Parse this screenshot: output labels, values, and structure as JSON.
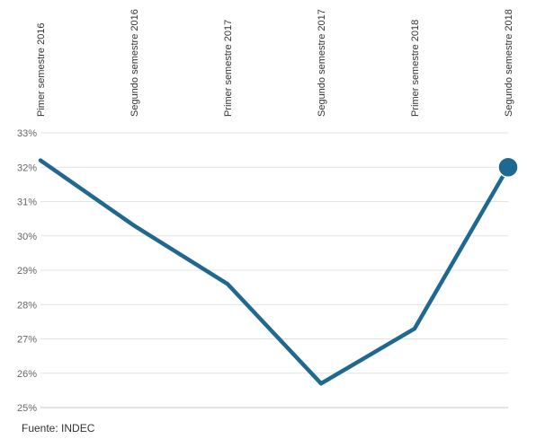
{
  "source": "Fuente: INDEC",
  "chart_data": {
    "type": "line",
    "title": "",
    "xlabel": "",
    "ylabel": "",
    "x": [
      "Pimer semestre 2016",
      "Segundo semestre 2016",
      "Primer semestre 2017",
      "Segundo semestre 2017",
      "Primer semestre 2018",
      "Segundo semestre 2018"
    ],
    "y_tick_labels": [
      "33%",
      "32%",
      "31%",
      "30%",
      "29%",
      "28%",
      "27%",
      "26%",
      "25%"
    ],
    "ylim": [
      25,
      33
    ],
    "grid": true,
    "series": [
      {
        "values": [
          32.2,
          30.3,
          28.6,
          25.7,
          27.3,
          32.0
        ],
        "color": "#1f6891"
      }
    ],
    "highlight_last_point": true
  }
}
